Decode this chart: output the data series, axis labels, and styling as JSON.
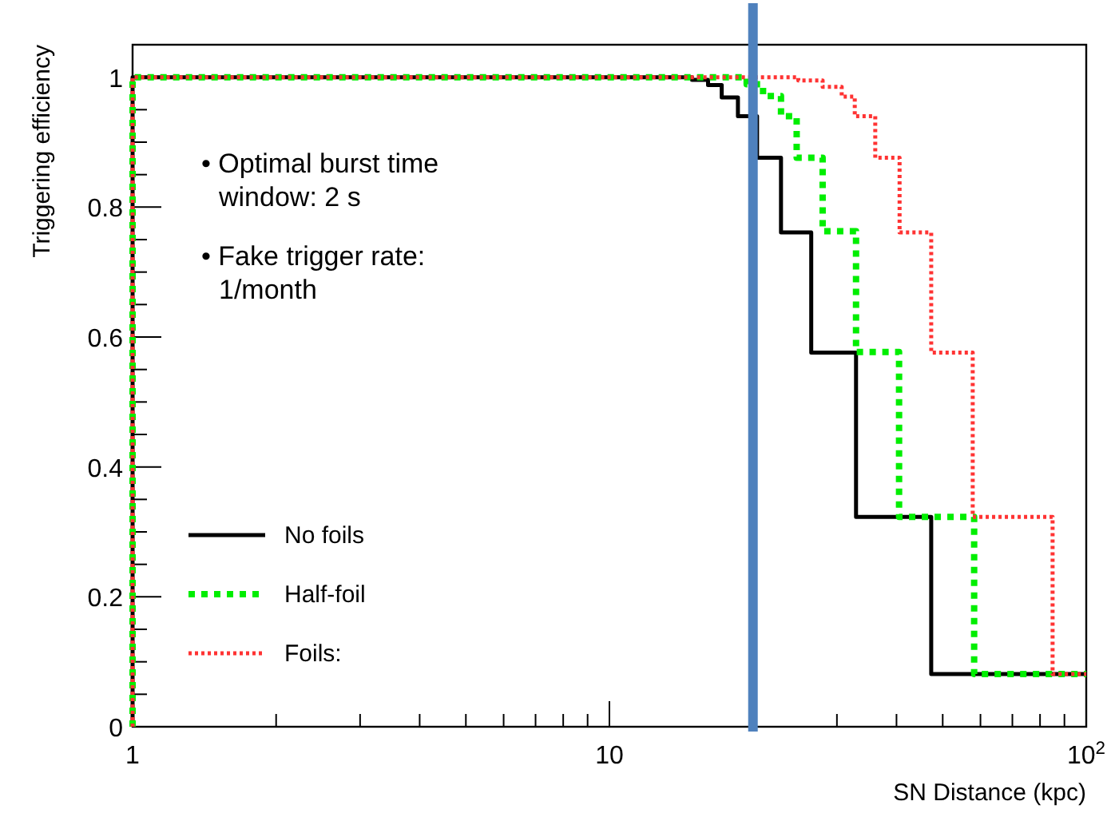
{
  "chart_data": {
    "type": "step",
    "xlabel": "SN Distance (kpc)",
    "ylabel": "Triggering efficiency",
    "log": "x",
    "xlim": [
      1,
      100
    ],
    "xticks": [
      1,
      {
        "value": 2,
        "label": null
      },
      {
        "value": 3,
        "label": null
      },
      {
        "value": 4,
        "label": null
      },
      {
        "value": 5,
        "label": null
      },
      {
        "value": 6,
        "label": null
      },
      {
        "value": 7,
        "label": null
      },
      {
        "value": 8,
        "label": null
      },
      {
        "value": 9,
        "label": null
      },
      10,
      {
        "value": 20,
        "label": null
      },
      {
        "value": 30,
        "label": null
      },
      {
        "value": 40,
        "label": null
      },
      {
        "value": 50,
        "label": null
      },
      {
        "value": 60,
        "label": null
      },
      {
        "value": 70,
        "label": null
      },
      {
        "value": 80,
        "label": null
      },
      {
        "value": 90,
        "label": null
      },
      {
        "value": 100,
        "label": "10$^{2}$"
      }
    ],
    "ylim": [
      0,
      1.05
    ],
    "yticks": [
      0,
      {
        "value": 0.05,
        "label": null
      },
      {
        "value": 0.1,
        "label": null
      },
      {
        "value": 0.15,
        "label": null
      },
      0.2,
      {
        "value": 0.25,
        "label": null
      },
      {
        "value": 0.3,
        "label": null
      },
      {
        "value": 0.35,
        "label": null
      },
      0.4,
      {
        "value": 0.45,
        "label": null
      },
      {
        "value": 0.5,
        "label": null
      },
      {
        "value": 0.55,
        "label": null
      },
      0.6,
      {
        "value": 0.65,
        "label": null
      },
      {
        "value": 0.7,
        "label": null
      },
      {
        "value": 0.75,
        "label": null
      },
      0.8,
      {
        "value": 0.85,
        "label": null
      },
      {
        "value": 0.9,
        "label": null
      },
      {
        "value": 0.95,
        "label": null
      },
      1
    ],
    "series": [
      {
        "name": "No foils",
        "color": "#000000",
        "line_style": "solid",
        "x": [
          1,
          1,
          14.9,
          16.1,
          17.2,
          18.6,
          20.4,
          22.9,
          26.5,
          32.9,
          47.3,
          100
        ],
        "values": [
          0,
          1,
          0.996,
          0.988,
          0.969,
          0.94,
          0.876,
          0.761,
          0.576,
          0.323,
          0.081,
          0.081
        ]
      },
      {
        "name": "Half-foil",
        "color": "#00ee00",
        "line_style": "dashed",
        "x": [
          1,
          1,
          19.4,
          21.0,
          22.9,
          24.7,
          28.0,
          32.9,
          40.5,
          58.2,
          100
        ],
        "values": [
          0,
          1,
          0.989,
          0.971,
          0.94,
          0.876,
          0.763,
          0.577,
          0.323,
          0.081,
          0.081
        ]
      },
      {
        "name": "Foils:",
        "color": "#ff3333",
        "line_style": "dotted",
        "x": [
          1,
          1,
          24.9,
          28.0,
          30.7,
          32.7,
          36.1,
          40.6,
          47.3,
          57.8,
          85.0,
          100
        ],
        "values": [
          0,
          1,
          0.995,
          0.985,
          0.97,
          0.94,
          0.876,
          0.761,
          0.576,
          0.323,
          0.081,
          0.081
        ]
      }
    ],
    "ref_lines": [
      {
        "axis": "x",
        "value": 20,
        "color": "#4f81bd"
      }
    ],
    "annotations": [
      "• Optimal burst time window: 2 s",
      "• Fake trigger rate: 1/month"
    ],
    "legend": "bottom left",
    "grid": false
  }
}
